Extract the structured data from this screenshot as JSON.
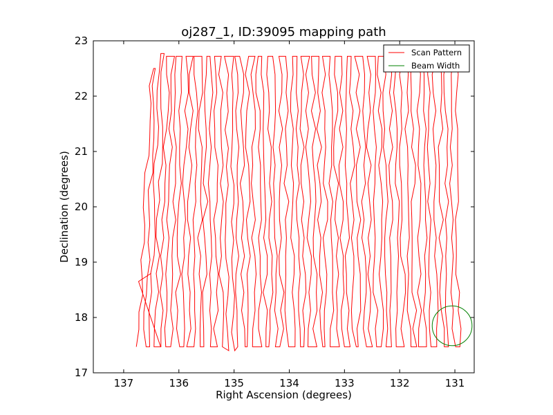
{
  "chart_data": {
    "type": "line",
    "title": "oj287_1, ID:39095 mapping path",
    "xlabel": "Right Ascension (degrees)",
    "ylabel": "Declination (degrees)",
    "xlim": [
      137.55,
      130.65
    ],
    "ylim": [
      17,
      23
    ],
    "x_inverted": true,
    "xticks": [
      137,
      136,
      135,
      134,
      133,
      132,
      131
    ],
    "yticks": [
      17,
      18,
      19,
      20,
      21,
      22,
      23
    ],
    "grid": false,
    "legend_position": "top-right",
    "series": [
      {
        "name": "Scan Pattern",
        "color": "#ff0000",
        "kind": "scan-lines",
        "stripes": [
          {
            "x_bottom": 136.73,
            "x_top": 136.5,
            "y_bottom": 17.47,
            "y_top": 22.5
          },
          {
            "x_bottom": 136.53,
            "x_top": 136.36,
            "y_bottom": 17.47,
            "y_top": 22.77
          },
          {
            "x_bottom": 136.33,
            "x_top": 136.2,
            "y_bottom": 17.47,
            "y_top": 22.72
          },
          {
            "x_bottom": 136.13,
            "x_top": 136.04,
            "y_bottom": 17.47,
            "y_top": 22.72
          },
          {
            "x_bottom": 135.93,
            "x_top": 135.86,
            "y_bottom": 17.47,
            "y_top": 22.72
          },
          {
            "x_bottom": 135.73,
            "x_top": 135.69,
            "y_bottom": 17.47,
            "y_top": 22.72
          },
          {
            "x_bottom": 135.53,
            "x_top": 135.51,
            "y_bottom": 17.47,
            "y_top": 22.72
          },
          {
            "x_bottom": 135.33,
            "x_top": 135.33,
            "y_bottom": 17.47,
            "y_top": 22.72
          },
          {
            "x_bottom": 135.13,
            "x_top": 135.14,
            "y_bottom": 17.4,
            "y_top": 22.72
          },
          {
            "x_bottom": 134.93,
            "x_top": 134.96,
            "y_bottom": 17.47,
            "y_top": 22.72
          },
          {
            "x_bottom": 134.73,
            "x_top": 134.76,
            "y_bottom": 17.47,
            "y_top": 22.72
          },
          {
            "x_bottom": 134.53,
            "x_top": 134.57,
            "y_bottom": 17.47,
            "y_top": 22.72
          },
          {
            "x_bottom": 134.33,
            "x_top": 134.37,
            "y_bottom": 17.47,
            "y_top": 22.72
          },
          {
            "x_bottom": 134.13,
            "x_top": 134.17,
            "y_bottom": 17.47,
            "y_top": 22.72
          },
          {
            "x_bottom": 133.93,
            "x_top": 133.97,
            "y_bottom": 17.47,
            "y_top": 22.72
          },
          {
            "x_bottom": 133.73,
            "x_top": 133.77,
            "y_bottom": 17.47,
            "y_top": 22.72
          },
          {
            "x_bottom": 133.53,
            "x_top": 133.57,
            "y_bottom": 17.47,
            "y_top": 22.72
          },
          {
            "x_bottom": 133.33,
            "x_top": 133.37,
            "y_bottom": 17.47,
            "y_top": 22.72
          },
          {
            "x_bottom": 133.13,
            "x_top": 133.17,
            "y_bottom": 17.47,
            "y_top": 22.72
          },
          {
            "x_bottom": 132.93,
            "x_top": 132.97,
            "y_bottom": 17.47,
            "y_top": 22.72
          },
          {
            "x_bottom": 132.73,
            "x_top": 132.77,
            "y_bottom": 17.47,
            "y_top": 22.72
          },
          {
            "x_bottom": 132.53,
            "x_top": 132.57,
            "y_bottom": 17.47,
            "y_top": 22.72
          },
          {
            "x_bottom": 132.33,
            "x_top": 132.37,
            "y_bottom": 17.47,
            "y_top": 22.72
          },
          {
            "x_bottom": 132.13,
            "x_top": 132.17,
            "y_bottom": 17.47,
            "y_top": 22.72
          },
          {
            "x_bottom": 131.93,
            "x_top": 131.97,
            "y_bottom": 17.47,
            "y_top": 22.72
          },
          {
            "x_bottom": 131.73,
            "x_top": 131.77,
            "y_bottom": 17.47,
            "y_top": 22.72
          },
          {
            "x_bottom": 131.53,
            "x_top": 131.57,
            "y_bottom": 17.47,
            "y_top": 22.72
          },
          {
            "x_bottom": 131.33,
            "x_top": 131.37,
            "y_bottom": 17.47,
            "y_top": 22.72
          },
          {
            "x_bottom": 131.13,
            "x_top": 131.17,
            "y_bottom": 17.47,
            "y_top": 22.72
          },
          {
            "x_bottom": 130.93,
            "x_top": 130.97,
            "y_bottom": 17.47,
            "y_top": 22.72
          }
        ]
      },
      {
        "name": "Beam Width",
        "color": "#008000",
        "kind": "circle",
        "center_x": 131.05,
        "center_y": 17.85,
        "radius": 0.36
      }
    ]
  }
}
